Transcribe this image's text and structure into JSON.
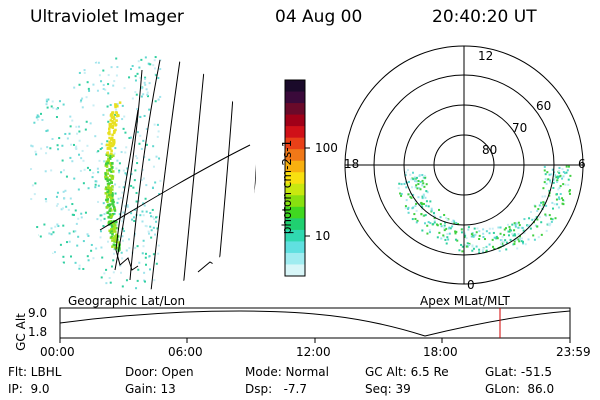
{
  "header": {
    "instrument": "Ultraviolet Imager",
    "date": "04 Aug 00",
    "time": "20:40:20 UT"
  },
  "geo_panel": {
    "label": "Geographic Lat/Lon"
  },
  "colorbar": {
    "unit_label": "photon cm-2s-1",
    "ticks": [
      "100",
      "10"
    ],
    "colors": [
      "#1a0a2a",
      "#3a0a3a",
      "#6a0a2a",
      "#a00018",
      "#d01018",
      "#e84018",
      "#f07818",
      "#f8b010",
      "#f8e010",
      "#c8e810",
      "#88e010",
      "#40d820",
      "#20d070",
      "#30d8b0",
      "#60e0e0",
      "#a0ecf0",
      "#d8f6f8"
    ]
  },
  "polar_panel": {
    "label": "Apex MLat/MLT",
    "mlt_labels": {
      "top": "12",
      "left": "18",
      "right": "6",
      "bottom": "0"
    },
    "lat_labels": [
      "60",
      "70",
      "80"
    ]
  },
  "altitude_plot": {
    "ylabel": "GC Alt",
    "yticks": [
      "9.0",
      "1.8"
    ],
    "xticks": [
      "00:00",
      "06:00",
      "12:00",
      "18:00",
      "23:59"
    ]
  },
  "info": {
    "col1": [
      "Flt: LBHL",
      "IP:  9.0"
    ],
    "col2": [
      "Door: Open",
      "Gain: 13"
    ],
    "col3": [
      "Mode: Normal",
      "Dsp:   -7.7"
    ],
    "col4": [
      "GC Alt: 6.5 Re",
      "Seq: 39"
    ],
    "col5": [
      "GLat: -51.5",
      "GLon:  86.0"
    ]
  }
}
